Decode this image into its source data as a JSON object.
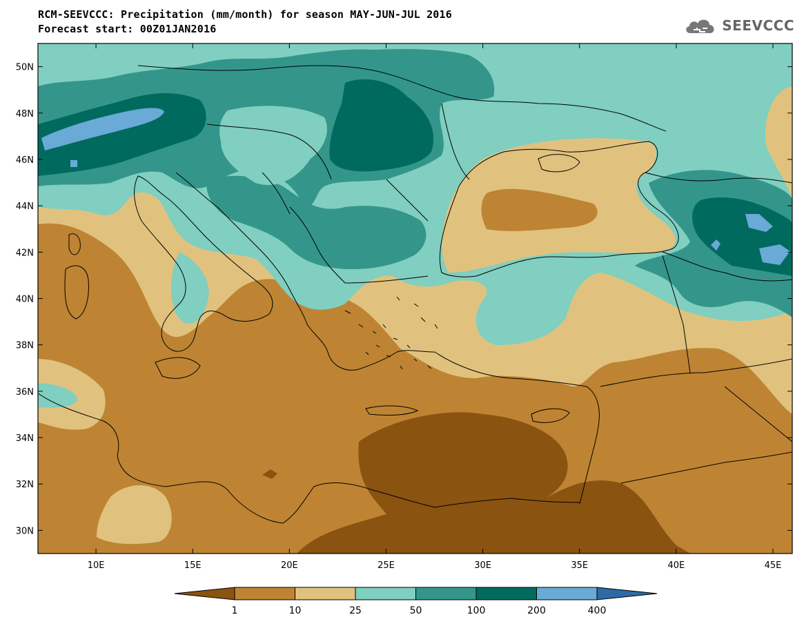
{
  "header": {
    "title": "RCM-SEEVCCC: Precipitation (mm/month) for season MAY-JUN-JUL 2016",
    "subtitle": "Forecast start: 00Z01JAN2016"
  },
  "logo": {
    "text": "SEEVCCC",
    "icon": "cloud-icon"
  },
  "map_data": {
    "type": "filled-contour map",
    "variable": "Precipitation",
    "units": "mm/month",
    "lon_range": [
      7,
      46
    ],
    "lat_range": [
      29,
      51
    ],
    "lon_ticks": [
      10,
      15,
      20,
      25,
      30,
      35,
      40,
      45
    ],
    "lon_tick_labels": [
      "10E",
      "15E",
      "20E",
      "25E",
      "30E",
      "35E",
      "40E",
      "45E"
    ],
    "lat_ticks": [
      30,
      32,
      34,
      36,
      38,
      40,
      42,
      44,
      46,
      48,
      50
    ],
    "lat_tick_labels": [
      "30N",
      "32N",
      "34N",
      "36N",
      "38N",
      "40N",
      "42N",
      "44N",
      "46N",
      "48N",
      "50N"
    ]
  },
  "colorbar": {
    "levels": [
      "1",
      "10",
      "25",
      "50",
      "100",
      "200",
      "400"
    ],
    "colors": [
      "#8a5310",
      "#be8433",
      "#e0c27e",
      "#80cfc0",
      "#34968b",
      "#006a5e",
      "#6aaad6",
      "#2d6aa6"
    ]
  },
  "palette": {
    "very_dry": "#8a5310",
    "dry": "#be8433",
    "moderate": "#e0c27e",
    "wet": "#80cfc0",
    "very_wet": "#34968b",
    "wettest": "#006a5e",
    "extreme": "#6aaad6"
  }
}
